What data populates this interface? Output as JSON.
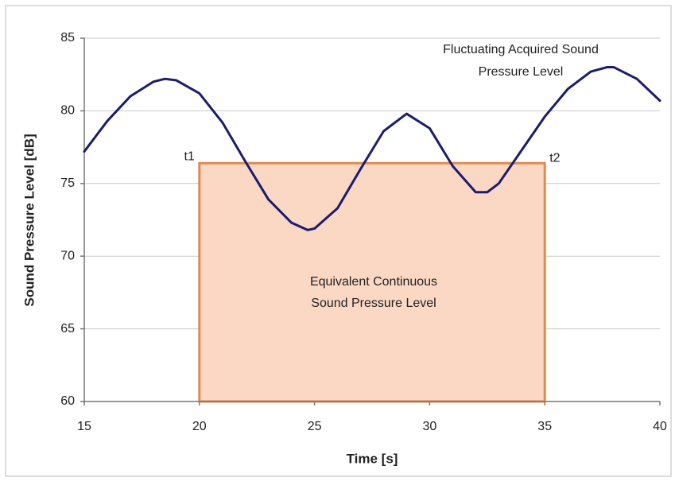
{
  "chart_data": {
    "type": "line",
    "ylabel": "Sound Pressure Level [dB]",
    "xlabel": "Time [s]",
    "xlim": [
      15,
      40
    ],
    "xticks": [
      15,
      20,
      25,
      30,
      35,
      40
    ],
    "ylim": [
      60,
      85
    ],
    "yticks": [
      60,
      65,
      70,
      75,
      80,
      85
    ],
    "grid": true,
    "series": [
      {
        "color": "#1c1c6e",
        "x": [
          15,
          16,
          17,
          18,
          18.5,
          19,
          20,
          21,
          22,
          23,
          24,
          24.7,
          25,
          26,
          27,
          28,
          29,
          30,
          31,
          32,
          32.5,
          33,
          34,
          35,
          36,
          37,
          37.7,
          38,
          39,
          40
        ],
        "values": [
          77.2,
          79.3,
          81.0,
          82.0,
          82.2,
          82.1,
          81.2,
          79.2,
          76.5,
          73.9,
          72.3,
          71.8,
          71.9,
          73.3,
          76.0,
          78.6,
          79.8,
          78.8,
          76.2,
          74.4,
          74.4,
          75.0,
          77.3,
          79.6,
          81.5,
          82.7,
          83.0,
          83.0,
          82.2,
          80.7
        ]
      }
    ],
    "equivalent": {
      "x": [
        20,
        35
      ],
      "value": 76.4,
      "fill": "#fbd8c4",
      "stroke": "#e08a50"
    },
    "annotations": {
      "curve": [
        "Fluctuating Acquired Sound",
        "Pressure Level"
      ],
      "equivalent": [
        "Equivalent Continuous",
        "Sound Pressure Level"
      ],
      "t1": "t1",
      "t2": "t2"
    }
  }
}
